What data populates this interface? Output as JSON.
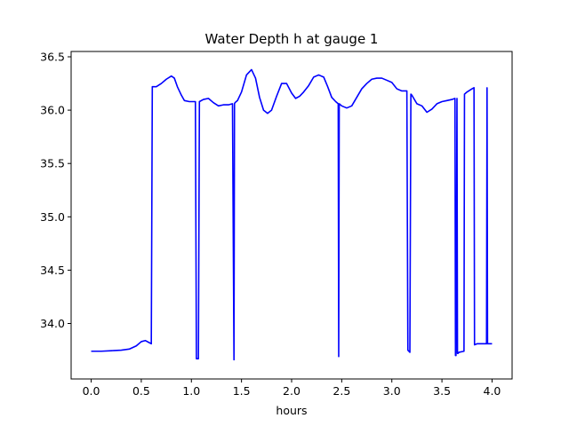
{
  "chart_data": {
    "type": "line",
    "title": "Water Depth h at gauge 1",
    "xlabel": "hours",
    "ylabel": "",
    "xlim": [
      -0.2,
      4.2
    ],
    "ylim": [
      33.48,
      36.55
    ],
    "xticks": [
      0.0,
      0.5,
      1.0,
      1.5,
      2.0,
      2.5,
      3.0,
      3.5,
      4.0
    ],
    "xtick_labels": [
      "0.0",
      "0.5",
      "1.0",
      "1.5",
      "2.0",
      "2.5",
      "3.0",
      "3.5",
      "4.0"
    ],
    "yticks": [
      34.0,
      34.5,
      35.0,
      35.5,
      36.0,
      36.5
    ],
    "ytick_labels": [
      "34.0",
      "34.5",
      "35.0",
      "35.5",
      "36.0",
      "36.5"
    ],
    "grid": false,
    "series": [
      {
        "color": "#0000ff",
        "x": [
          0.0,
          0.1,
          0.2,
          0.3,
          0.38,
          0.45,
          0.5,
          0.54,
          0.58,
          0.6,
          0.61,
          0.65,
          0.7,
          0.75,
          0.8,
          0.83,
          0.86,
          0.9,
          0.93,
          0.98,
          1.04,
          1.05,
          1.06,
          1.07,
          1.08,
          1.12,
          1.17,
          1.22,
          1.27,
          1.32,
          1.37,
          1.41,
          1.425,
          1.43,
          1.435,
          1.46,
          1.5,
          1.55,
          1.6,
          1.64,
          1.68,
          1.72,
          1.76,
          1.8,
          1.85,
          1.9,
          1.95,
          2.0,
          2.04,
          2.08,
          2.12,
          2.17,
          2.22,
          2.27,
          2.32,
          2.36,
          2.4,
          2.44,
          2.465,
          2.47,
          2.475,
          2.5,
          2.55,
          2.6,
          2.65,
          2.7,
          2.75,
          2.8,
          2.85,
          2.9,
          2.95,
          3.0,
          3.05,
          3.1,
          3.15,
          3.16,
          3.17,
          3.18,
          3.19,
          3.2,
          3.25,
          3.3,
          3.35,
          3.4,
          3.45,
          3.5,
          3.55,
          3.6,
          3.63,
          3.635,
          3.64,
          3.65,
          3.655,
          3.66,
          3.67,
          3.72,
          3.725,
          3.75,
          3.8,
          3.82,
          3.825,
          3.85,
          3.9,
          3.945,
          3.95,
          3.955,
          4.0
        ],
        "y": [
          33.74,
          33.74,
          33.745,
          33.75,
          33.76,
          33.79,
          33.83,
          33.84,
          33.82,
          33.81,
          36.22,
          36.22,
          36.25,
          36.29,
          36.32,
          36.3,
          36.22,
          36.14,
          36.09,
          36.08,
          36.08,
          33.67,
          33.67,
          33.67,
          36.08,
          36.1,
          36.11,
          36.07,
          36.04,
          36.05,
          36.05,
          36.06,
          33.66,
          36.06,
          36.07,
          36.09,
          36.17,
          36.33,
          36.38,
          36.3,
          36.12,
          36.0,
          35.97,
          36.0,
          36.13,
          36.25,
          36.25,
          36.16,
          36.11,
          36.13,
          36.17,
          36.23,
          36.31,
          36.33,
          36.31,
          36.22,
          36.12,
          36.08,
          36.06,
          33.69,
          36.06,
          36.04,
          36.02,
          36.04,
          36.12,
          36.2,
          36.25,
          36.29,
          36.3,
          36.3,
          36.28,
          36.26,
          36.2,
          36.18,
          36.18,
          33.75,
          33.74,
          33.73,
          36.15,
          36.14,
          36.06,
          36.04,
          35.98,
          36.01,
          36.06,
          36.08,
          36.09,
          36.1,
          36.11,
          33.7,
          33.7,
          36.11,
          33.72,
          33.72,
          33.73,
          33.74,
          36.15,
          36.17,
          36.2,
          36.21,
          33.8,
          33.81,
          33.81,
          33.81,
          36.21,
          33.81,
          33.81
        ]
      }
    ]
  }
}
